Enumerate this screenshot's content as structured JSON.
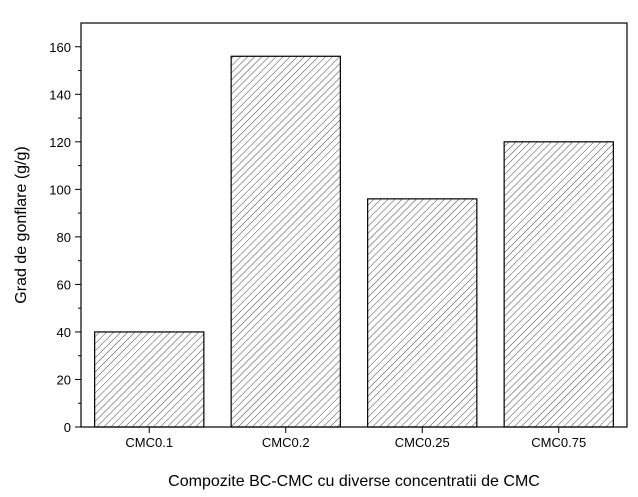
{
  "chart_data": {
    "type": "bar",
    "categories": [
      "CMC0.1",
      "CMC0.2",
      "CMC0.25",
      "CMC0.75"
    ],
    "values": [
      40,
      156,
      96,
      120
    ],
    "title": "",
    "xlabel": "Compozite BC-CMC cu diverse concentratii de CMC",
    "ylabel": "Grad de gonflare (g/g)",
    "ylim": [
      0,
      170
    ],
    "yticks": [
      0,
      20,
      40,
      60,
      80,
      100,
      120,
      140,
      160
    ],
    "grid": false,
    "legend": "none",
    "bar_fill": "diagonal-hatch",
    "bar_color": "#444444"
  }
}
